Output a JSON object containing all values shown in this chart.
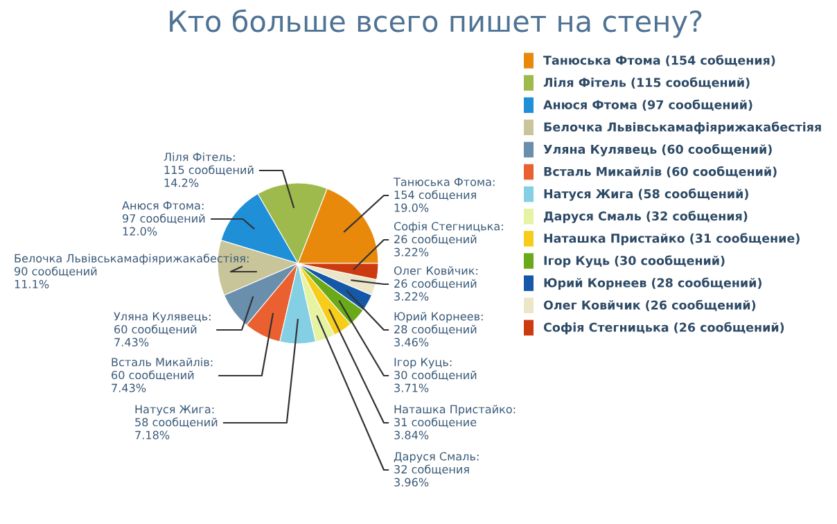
{
  "chart_data": {
    "type": "pie",
    "title": "Кто больше всего пишет на стену?",
    "categories": [
      "Танюська Фтома (154 собщения)",
      "Ліля Фітель (115 сообщений)",
      "Анюся Фтома (97 сообщений)",
      "Белочка Львівськамафіярижакабестіяя",
      "Уляна Кулявець (60 сообщений)",
      "Вcталь Микайлів (60 сообщений)",
      "Натуся Жига (58 сообщений)",
      "Даруся Смаль (32 собщения)",
      "Наташка Пристайко (31 сообщение)",
      "Ігор Куць (30 сообщений)",
      "Юрий Корнеев (28 сообщений)",
      "Олег Ковйчик (26 сообщений)",
      "Софія Стегницька (26 сообщений)"
    ],
    "values": [
      154,
      115,
      97,
      90,
      60,
      60,
      58,
      32,
      31,
      30,
      28,
      26,
      26
    ],
    "colors": [
      "#e8890c",
      "#9fba4c",
      "#1f8fd8",
      "#c9c59a",
      "#6a8fac",
      "#ea6030",
      "#84cfe3",
      "#e6f3a3",
      "#f6cd1a",
      "#6aaa1a",
      "#1658a8",
      "#ece6c8",
      "#cc3a10"
    ],
    "value_labels": [
      "Танюська Фтома:\n154 собщения\n19.0%",
      "Ліля Фітель:\n115 сообщений\n14.2%",
      "Анюся Фтома:\n97 сообщений\n12.0%",
      "Белочка Львівськамафіярижакабестіяя:\n90 сообщений\n11.1%",
      "Уляна Кулявець:\n60 сообщений\n7.43%",
      "Вcталь Микайлів:\n60 сообщений\n7.43%",
      "Натуся Жига:\n58 сообщений\n7.18%",
      "Даруся Смаль:\n32 собщения\n3.96%",
      "Наташка Пристайко:\n31 сообщение\n3.84%",
      "Ігор Куць:\n30 сообщений\n3.71%",
      "Юрий Корнеев:\n28 сообщений\n3.46%",
      "Олег Ковйчик:\n26 сообщений\n3.22%",
      "Софія Стегницька:\n26 сообщений\n3.22%"
    ],
    "legend": "right"
  }
}
